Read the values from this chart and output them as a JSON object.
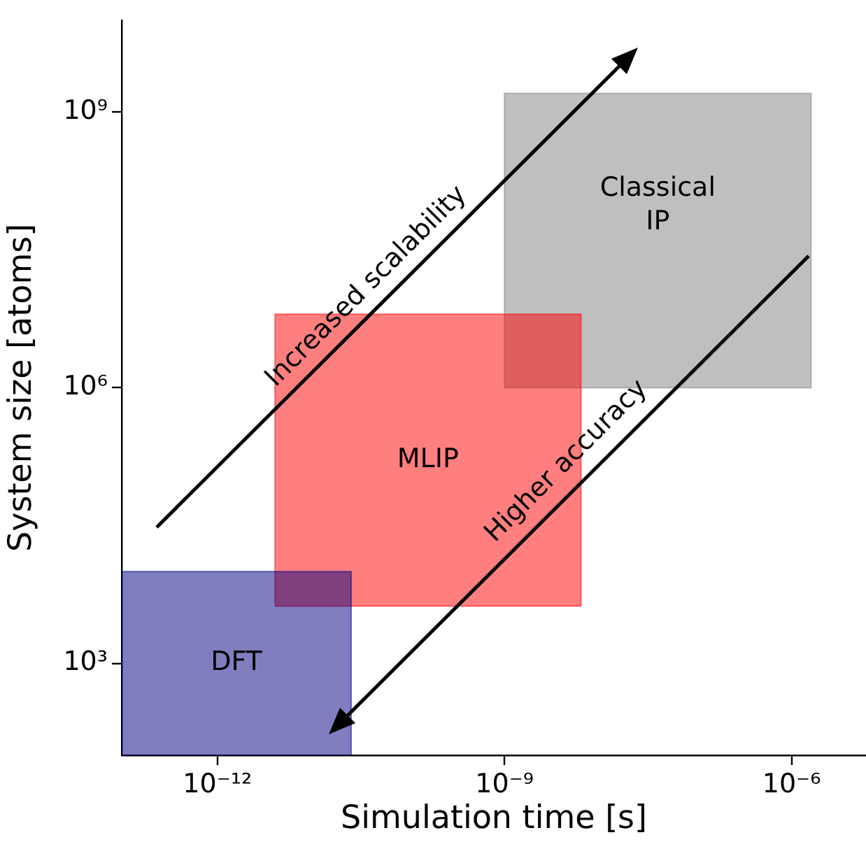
{
  "chart_data": {
    "type": "area",
    "xlabel": "Simulation time [s]",
    "ylabel": "System size [atoms]",
    "log": "xy",
    "grid": false,
    "legend": false,
    "xlim": [
      1e-13,
      6e-06
    ],
    "xticks": [
      {
        "value": 1e-12,
        "label": "10⁻¹²"
      },
      {
        "value": 1e-09,
        "label": "10⁻⁹"
      },
      {
        "value": 1e-06,
        "label": "10⁻⁶"
      }
    ],
    "ylim": [
      100,
      10000000000.0
    ],
    "yticks": [
      {
        "value": 1000,
        "label": "10³"
      },
      {
        "value": 1000000,
        "label": "10⁶"
      },
      {
        "value": 1000000000,
        "label": "10⁹"
      }
    ],
    "series": [
      {
        "name": "DFT",
        "color": "#000080",
        "x": [
          1e-13,
          1e-13,
          2.5e-11,
          2.5e-11,
          1e-13
        ],
        "values": [
          100,
          10000,
          10000,
          100,
          100
        ]
      },
      {
        "name": "MLIP",
        "color": "#ff0000",
        "x": [
          4e-12,
          4e-12,
          6.3e-09,
          6.3e-09,
          4e-12
        ],
        "values": [
          4200,
          6300000,
          6300000,
          4200,
          4200
        ]
      },
      {
        "name": "Classical IP",
        "color": "#808080",
        "x": [
          1e-09,
          1e-09,
          1.6e-06,
          1.6e-06,
          1e-09
        ],
        "values": [
          1000000,
          1600000000,
          1600000000,
          1000000,
          1000000
        ]
      }
    ],
    "annotations": [
      "Increased scalability",
      "Higher accuracy"
    ]
  }
}
